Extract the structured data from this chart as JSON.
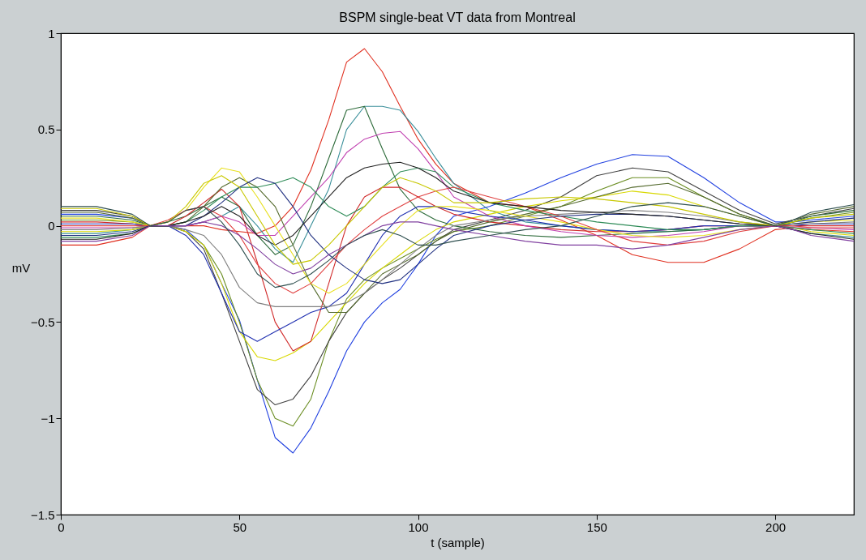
{
  "chart_data": {
    "type": "line",
    "title": "BSPM single-beat VT data from Montreal",
    "xlabel": "t (sample)",
    "ylabel": "mV",
    "x": [
      0,
      10,
      20,
      25,
      30,
      35,
      40,
      45,
      50,
      55,
      60,
      65,
      70,
      75,
      80,
      85,
      90,
      95,
      100,
      105,
      110,
      120,
      130,
      140,
      150,
      160,
      170,
      180,
      190,
      200,
      205,
      210,
      222
    ],
    "xlim": [
      0,
      222
    ],
    "xticks": [
      0,
      50,
      100,
      150,
      200
    ],
    "ylim": [
      -1.5,
      1
    ],
    "yticks": [
      -1.5,
      -1,
      -0.5,
      0,
      0.5,
      1
    ],
    "grid": false,
    "legend": false,
    "marker": "none",
    "line_style": "solid",
    "series": [
      {
        "color": "#2040e0",
        "values": [
          0.06,
          0.06,
          0.04,
          0,
          0,
          -0.02,
          -0.1,
          -0.3,
          -0.49,
          -0.8,
          -1.1,
          -1.18,
          -1.05,
          -0.86,
          -0.65,
          -0.5,
          -0.4,
          -0.33,
          -0.2,
          -0.05,
          0.05,
          0.1,
          0.17,
          0.25,
          0.32,
          0.37,
          0.36,
          0.25,
          0.12,
          0.02,
          0.02,
          0.03,
          0.05
        ]
      },
      {
        "color": "#e03020",
        "values": [
          -0.1,
          -0.1,
          -0.06,
          0,
          0,
          0,
          0,
          -0.02,
          -0.03,
          -0.04,
          0,
          0.1,
          0.29,
          0.55,
          0.85,
          0.92,
          0.8,
          0.62,
          0.45,
          0.32,
          0.22,
          0.12,
          0.1,
          0.03,
          -0.05,
          -0.15,
          -0.19,
          -0.19,
          -0.12,
          -0.02,
          -0.01,
          -0.02,
          -0.03
        ]
      },
      {
        "color": "#6b8e23",
        "values": [
          0.03,
          0.03,
          0.02,
          0,
          0,
          -0.03,
          -0.1,
          -0.25,
          -0.5,
          -0.8,
          -1.0,
          -1.04,
          -0.9,
          -0.6,
          -0.38,
          -0.28,
          -0.22,
          -0.17,
          -0.12,
          -0.07,
          -0.03,
          0,
          0.05,
          0.1,
          0.18,
          0.25,
          0.25,
          0.15,
          0.06,
          0,
          0.02,
          0.04,
          0.07
        ]
      },
      {
        "color": "#404040",
        "values": [
          0.08,
          0.08,
          0.05,
          0,
          0,
          -0.03,
          -0.12,
          -0.35,
          -0.6,
          -0.85,
          -0.93,
          -0.9,
          -0.78,
          -0.6,
          -0.45,
          -0.35,
          -0.28,
          -0.22,
          -0.15,
          -0.08,
          -0.02,
          0.03,
          0.08,
          0.15,
          0.26,
          0.3,
          0.28,
          0.18,
          0.08,
          0.01,
          0.03,
          0.05,
          0.09
        ]
      },
      {
        "color": "#3a8f9a",
        "values": [
          -0.04,
          -0.04,
          -0.02,
          0,
          0,
          0,
          0.02,
          0.05,
          0.1,
          0.0,
          -0.12,
          -0.19,
          0,
          0.19,
          0.5,
          0.62,
          0.62,
          0.6,
          0.49,
          0.35,
          0.22,
          0.08,
          0.02,
          0,
          -0.02,
          -0.03,
          -0.03,
          -0.02,
          0,
          0,
          -0.02,
          -0.04,
          -0.06
        ]
      },
      {
        "color": "#2d6b3a",
        "values": [
          0.05,
          0.05,
          0.03,
          0,
          0.02,
          0.05,
          0.1,
          0.15,
          0.1,
          -0.05,
          -0.15,
          -0.1,
          0.1,
          0.35,
          0.6,
          0.62,
          0.4,
          0.19,
          0.08,
          0.03,
          0,
          -0.03,
          -0.05,
          -0.06,
          -0.05,
          -0.04,
          -0.03,
          -0.02,
          0,
          0,
          0.02,
          0.05,
          0.08
        ]
      },
      {
        "color": "#d8d800",
        "values": [
          -0.03,
          -0.03,
          -0.02,
          0,
          0,
          -0.03,
          -0.1,
          -0.3,
          -0.55,
          -0.68,
          -0.7,
          -0.66,
          -0.6,
          -0.5,
          -0.4,
          -0.3,
          -0.22,
          -0.15,
          -0.08,
          -0.02,
          0.02,
          0.06,
          0.1,
          0.13,
          0.15,
          0.18,
          0.16,
          0.1,
          0.05,
          0,
          -0.01,
          -0.03,
          -0.05
        ]
      },
      {
        "color": "#d02828",
        "values": [
          0.02,
          0.02,
          0.01,
          0,
          0,
          0.05,
          0.12,
          0.19,
          0.1,
          -0.19,
          -0.5,
          -0.65,
          -0.6,
          -0.3,
          0.0,
          0.15,
          0.2,
          0.2,
          0.15,
          0.1,
          0.06,
          0.02,
          0,
          -0.02,
          -0.03,
          -0.03,
          -0.02,
          0,
          0,
          0,
          0,
          0,
          0
        ]
      },
      {
        "color": "#c040b0",
        "values": [
          -0.01,
          -0.01,
          -0.01,
          0,
          0,
          0,
          0.02,
          0.05,
          0.02,
          -0.05,
          -0.05,
          0.05,
          0.15,
          0.25,
          0.38,
          0.45,
          0.48,
          0.49,
          0.4,
          0.28,
          0.15,
          0.05,
          0,
          -0.03,
          -0.05,
          -0.06,
          -0.05,
          -0.03,
          0,
          0,
          -0.01,
          -0.01,
          -0.02
        ]
      },
      {
        "color": "#2030b0",
        "values": [
          0.01,
          0.01,
          0.01,
          0,
          0,
          -0.05,
          -0.15,
          -0.35,
          -0.55,
          -0.6,
          -0.55,
          -0.5,
          -0.45,
          -0.42,
          -0.35,
          -0.2,
          -0.05,
          0.05,
          0.1,
          0.1,
          0.08,
          0.05,
          0.03,
          0,
          -0.02,
          -0.03,
          -0.02,
          0,
          0,
          0,
          0,
          0.01,
          0.01
        ]
      },
      {
        "color": "#556b2f",
        "values": [
          0.07,
          0.07,
          0.04,
          0,
          0,
          0.02,
          0.1,
          0.2,
          0.25,
          0.2,
          0.1,
          -0.1,
          -0.3,
          -0.45,
          -0.45,
          -0.35,
          -0.25,
          -0.2,
          -0.15,
          -0.08,
          -0.03,
          0.02,
          0.06,
          0.1,
          0.15,
          0.2,
          0.22,
          0.15,
          0.06,
          0,
          0.03,
          0.06,
          0.1
        ]
      },
      {
        "color": "#808080",
        "values": [
          -0.02,
          -0.02,
          -0.01,
          0,
          0,
          -0.02,
          -0.05,
          -0.15,
          -0.32,
          -0.4,
          -0.42,
          -0.42,
          -0.42,
          -0.42,
          -0.4,
          -0.35,
          -0.28,
          -0.2,
          -0.12,
          -0.05,
          0,
          0.03,
          0.05,
          0.06,
          0.07,
          0.08,
          0.07,
          0.05,
          0.02,
          0,
          0.01,
          0.01,
          0.02
        ]
      },
      {
        "color": "#e8e020",
        "values": [
          0.04,
          0.04,
          0.02,
          0,
          0.02,
          0.08,
          0.2,
          0.3,
          0.28,
          0.15,
          0,
          -0.15,
          -0.3,
          -0.35,
          -0.3,
          -0.2,
          -0.1,
          0,
          0.08,
          0.1,
          0.1,
          0.08,
          0.05,
          0.02,
          -0.02,
          -0.05,
          -0.06,
          -0.05,
          -0.02,
          0,
          0.01,
          0.02,
          0.03
        ]
      },
      {
        "color": "#2e8b57",
        "values": [
          -0.06,
          -0.06,
          -0.04,
          0,
          0,
          0.02,
          0.08,
          0.15,
          0.2,
          0.2,
          0.22,
          0.25,
          0.2,
          0.1,
          0.05,
          0.1,
          0.2,
          0.28,
          0.3,
          0.28,
          0.2,
          0.12,
          0.08,
          0.05,
          0.02,
          0,
          -0.02,
          -0.02,
          0,
          0,
          -0.01,
          -0.02,
          -0.04
        ]
      },
      {
        "color": "#e04040",
        "values": [
          0,
          0,
          0,
          0,
          0.03,
          0.08,
          0.1,
          0.05,
          -0.05,
          -0.2,
          -0.3,
          -0.35,
          -0.3,
          -0.2,
          -0.1,
          -0.02,
          0.05,
          0.1,
          0.15,
          0.18,
          0.2,
          0.15,
          0.1,
          0.05,
          -0.02,
          -0.08,
          -0.1,
          -0.08,
          -0.03,
          0,
          0,
          -0.01,
          -0.01
        ]
      },
      {
        "color": "#203080",
        "values": [
          -0.05,
          -0.05,
          -0.03,
          0,
          0,
          0,
          0.05,
          0.12,
          0.2,
          0.25,
          0.22,
          0.1,
          -0.05,
          -0.15,
          -0.22,
          -0.28,
          -0.3,
          -0.28,
          -0.2,
          -0.12,
          -0.05,
          0,
          0.03,
          0.05,
          0.06,
          0.06,
          0.05,
          0.03,
          0.01,
          0,
          0.01,
          0.02,
          0.04
        ]
      },
      {
        "color": "#202020",
        "values": [
          -0.07,
          -0.07,
          -0.04,
          0,
          0,
          0.02,
          0.05,
          0.1,
          0.05,
          -0.05,
          -0.1,
          -0.05,
          0.05,
          0.15,
          0.25,
          0.3,
          0.32,
          0.33,
          0.3,
          0.25,
          0.18,
          0.12,
          0.1,
          0.08,
          0.07,
          0.06,
          0.05,
          0.03,
          0.01,
          0,
          -0.02,
          -0.04,
          -0.07
        ]
      },
      {
        "color": "#c8c800",
        "values": [
          0.09,
          0.09,
          0.05,
          0,
          0.02,
          0.1,
          0.22,
          0.26,
          0.2,
          0.05,
          -0.1,
          -0.2,
          -0.18,
          -0.1,
          0,
          0.1,
          0.2,
          0.25,
          0.22,
          0.18,
          0.12,
          0.12,
          0.14,
          0.15,
          0.14,
          0.12,
          0.1,
          0.06,
          0.02,
          0,
          0.02,
          0.04,
          0.06
        ]
      },
      {
        "color": "#8040a0",
        "values": [
          -0.08,
          -0.08,
          -0.05,
          0,
          0,
          0,
          0.02,
          0,
          -0.05,
          -0.12,
          -0.2,
          -0.25,
          -0.22,
          -0.15,
          -0.1,
          -0.05,
          0,
          0.02,
          0.02,
          0,
          -0.02,
          -0.05,
          -0.08,
          -0.1,
          -0.1,
          -0.12,
          -0.1,
          -0.06,
          -0.02,
          0,
          -0.02,
          -0.05,
          -0.08
        ]
      },
      {
        "color": "#2f4f4f",
        "values": [
          0.1,
          0.1,
          0.06,
          0,
          0.02,
          0.08,
          0.1,
          0.02,
          -0.1,
          -0.25,
          -0.32,
          -0.3,
          -0.25,
          -0.18,
          -0.1,
          -0.05,
          -0.02,
          -0.05,
          -0.1,
          -0.1,
          -0.08,
          -0.05,
          -0.02,
          0,
          0.05,
          0.1,
          0.12,
          0.1,
          0.05,
          0,
          0.03,
          0.07,
          0.11
        ]
      }
    ]
  }
}
